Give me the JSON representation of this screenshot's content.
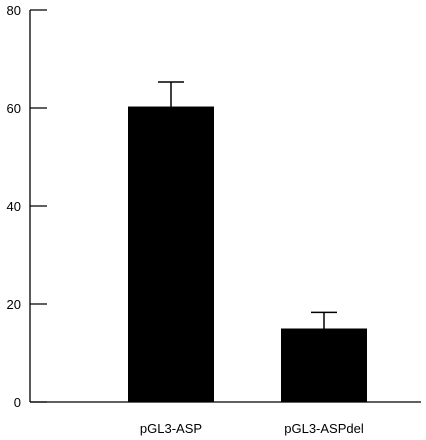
{
  "chart_data": {
    "type": "bar",
    "title": "",
    "xlabel": "",
    "ylabel": "",
    "categories": [
      "pGL3-ASP",
      "pGL3-ASPdel"
    ],
    "values": [
      60.3,
      15.0
    ],
    "error_bars": [
      5.0,
      3.3
    ],
    "ylim": [
      0,
      80
    ],
    "yticks": [
      0,
      20,
      40,
      60,
      80
    ],
    "ytick_labels": [
      "0",
      "20",
      "40",
      "60",
      "80"
    ],
    "grid": false,
    "legend": "none",
    "bar_color": "#000000",
    "axis_color": "#000000"
  }
}
